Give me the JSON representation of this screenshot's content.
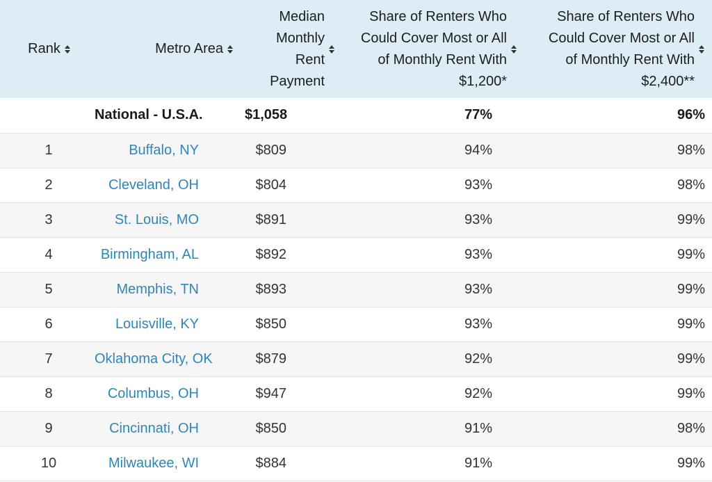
{
  "table": {
    "headers": [
      {
        "label": "Rank",
        "lines": [
          "Rank"
        ]
      },
      {
        "label": "Metro Area",
        "lines": [
          "Metro Area"
        ]
      },
      {
        "label": "Median Monthly Rent Payment",
        "lines": [
          "Median",
          "Monthly",
          "Rent",
          "Payment"
        ]
      },
      {
        "label": "Share of Renters Who Could Cover Most or All of Monthly Rent With $1,200*",
        "lines": [
          "Share of Renters Who",
          "Could Cover Most or All",
          "of Monthly Rent With",
          "$1,200*"
        ]
      },
      {
        "label": "Share of Renters Who Could Cover Most or All of Monthly Rent With $2,400**",
        "lines": [
          "Share of Renters Who",
          "Could Cover Most or All",
          "of Monthly Rent With",
          "$2,400**"
        ]
      }
    ],
    "national": {
      "rank": "",
      "metro": "National - U.S.A.",
      "rent": "$1,058",
      "share_1200": "77%",
      "share_2400": "96%"
    },
    "rows": [
      {
        "rank": "1",
        "metro": "Buffalo, NY",
        "rent": "$809",
        "share_1200": "94%",
        "share_2400": "98%"
      },
      {
        "rank": "2",
        "metro": "Cleveland, OH",
        "rent": "$804",
        "share_1200": "93%",
        "share_2400": "98%"
      },
      {
        "rank": "3",
        "metro": "St. Louis, MO",
        "rent": "$891",
        "share_1200": "93%",
        "share_2400": "99%"
      },
      {
        "rank": "4",
        "metro": "Birmingham, AL",
        "rent": "$892",
        "share_1200": "93%",
        "share_2400": "99%"
      },
      {
        "rank": "5",
        "metro": "Memphis, TN",
        "rent": "$893",
        "share_1200": "93%",
        "share_2400": "99%"
      },
      {
        "rank": "6",
        "metro": "Louisville, KY",
        "rent": "$850",
        "share_1200": "93%",
        "share_2400": "99%"
      },
      {
        "rank": "7",
        "metro": "Oklahoma City, OK",
        "rent": "$879",
        "share_1200": "92%",
        "share_2400": "99%"
      },
      {
        "rank": "8",
        "metro": "Columbus, OH",
        "rent": "$947",
        "share_1200": "92%",
        "share_2400": "99%"
      },
      {
        "rank": "9",
        "metro": "Cincinnati, OH",
        "rent": "$850",
        "share_1200": "91%",
        "share_2400": "98%"
      },
      {
        "rank": "10",
        "metro": "Milwaukee, WI",
        "rent": "$884",
        "share_1200": "91%",
        "share_2400": "99%"
      }
    ]
  },
  "colors": {
    "header_bg": "#ddedf6",
    "link": "#2e86b8",
    "stripe": "#f6f6f6",
    "border": "#e4e4e4"
  },
  "icons": {
    "sort": "sort-both-icon"
  }
}
